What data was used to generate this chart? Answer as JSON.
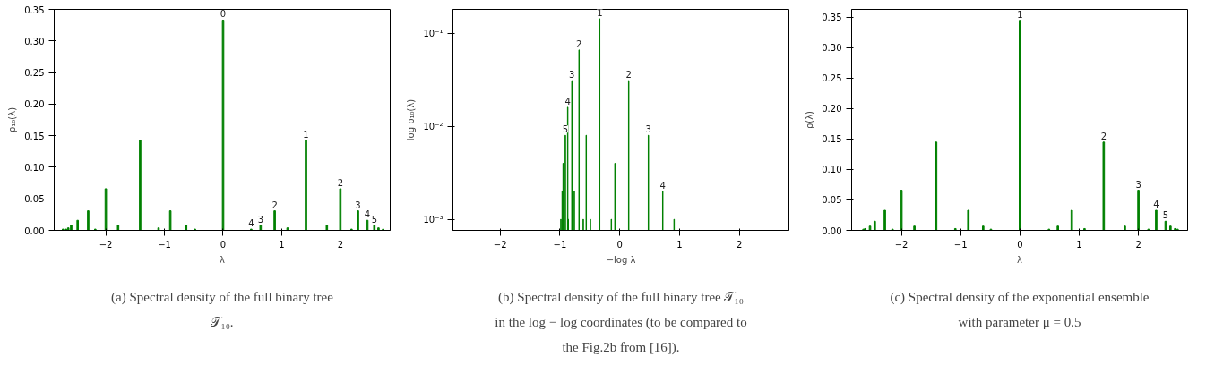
{
  "chart_data": [
    {
      "type": "bar",
      "xlabel": "λ",
      "ylabel": "ρ₁₀(λ)",
      "color": "#008000",
      "grid": false,
      "x": [
        -2.73,
        -2.68,
        -2.64,
        -2.59,
        -2.48,
        -2.3,
        -2.18,
        -2.0,
        -1.79,
        -1.414,
        -1.1,
        -0.9,
        -0.63,
        -0.48,
        0,
        0.48,
        0.64,
        0.88,
        1.1,
        1.414,
        1.77,
        2.0,
        2.19,
        2.3,
        2.46,
        2.58,
        2.65,
        2.73
      ],
      "values": [
        0.002,
        0.002,
        0.004,
        0.008,
        0.016,
        0.031,
        0.002,
        0.066,
        0.008,
        0.143,
        0.004,
        0.031,
        0.008,
        0.002,
        0.333,
        0.002,
        0.008,
        0.031,
        0.004,
        0.143,
        0.008,
        0.066,
        0.002,
        0.031,
        0.016,
        0.008,
        0.004,
        0.002
      ],
      "xlim": [
        -2.88,
        2.85
      ],
      "ylim": [
        0,
        0.35
      ],
      "xticks": [
        -2,
        -1,
        0,
        1,
        2
      ],
      "yticks": [
        {
          "value": 0,
          "label": "0.00"
        },
        {
          "value": 0.05,
          "label": "0.05"
        },
        {
          "value": 0.1,
          "label": "0.10"
        },
        {
          "value": 0.15,
          "label": "0.15"
        },
        {
          "value": 0.2,
          "label": "0.20"
        },
        {
          "value": 0.25,
          "label": "0.25"
        },
        {
          "value": 0.3,
          "label": "0.30"
        },
        {
          "value": 0.35,
          "label": "0.35"
        }
      ],
      "annotations": [
        {
          "text": "0",
          "x": 0,
          "y": 0.333
        },
        {
          "text": "4",
          "x": 0.48,
          "y": 0.002
        },
        {
          "text": "3",
          "x": 0.64,
          "y": 0.008
        },
        {
          "text": "2",
          "x": 0.88,
          "y": 0.031
        },
        {
          "text": "1",
          "x": 1.414,
          "y": 0.143
        },
        {
          "text": "2",
          "x": 2.0,
          "y": 0.066
        },
        {
          "text": "3",
          "x": 2.3,
          "y": 0.031
        },
        {
          "text": "4",
          "x": 2.46,
          "y": 0.016
        },
        {
          "text": "5",
          "x": 2.58,
          "y": 0.008
        },
        "(a) Spectral density of the full binary tree 𝒯₁₀."
      ]
    },
    {
      "type": "bar",
      "xlabel": "−log λ",
      "ylabel": "log ρ₁₀(λ)",
      "color": "#008000",
      "grid": false,
      "log": true,
      "x": [
        -0.984,
        -0.962,
        -0.946,
        -0.91,
        -0.87,
        -0.86,
        -0.8,
        -0.76,
        -0.68,
        -0.61,
        -0.56,
        -0.49,
        -0.335,
        -0.14,
        -0.08,
        0.15,
        0.48,
        0.72,
        0.91
      ],
      "values": [
        0.001,
        0.002,
        0.004,
        0.008,
        0.016,
        0.001,
        0.031,
        0.002,
        0.066,
        0.001,
        0.008,
        0.001,
        0.143,
        0.001,
        0.004,
        0.031,
        0.008,
        0.002,
        0.001
      ],
      "xlim": [
        -2.79,
        2.83
      ],
      "ylim": [
        0.00076,
        0.18
      ],
      "xticks": [
        -2,
        -1,
        0,
        1,
        2
      ],
      "yticks": [
        {
          "value": 0.001,
          "label": "10⁻³"
        },
        {
          "value": 0.01,
          "label": "10⁻²"
        },
        {
          "value": 0.1,
          "label": "10⁻¹"
        }
      ],
      "annotations": [
        {
          "text": "1",
          "x": -0.335,
          "y": 0.143
        },
        {
          "text": "2",
          "x": -0.68,
          "y": 0.066
        },
        {
          "text": "3",
          "x": -0.8,
          "y": 0.031
        },
        {
          "text": "4",
          "x": -0.87,
          "y": 0.016
        },
        {
          "text": "5",
          "x": -0.91,
          "y": 0.008
        },
        {
          "text": "2",
          "x": 0.15,
          "y": 0.031
        },
        {
          "text": "3",
          "x": 0.48,
          "y": 0.008
        },
        {
          "text": "4",
          "x": 0.72,
          "y": 0.002
        },
        "(b) Spectral density of the full binary tree 𝒯₁₀ in the log − log coordinates (to be compared to the Fig.2b from [16])."
      ]
    },
    {
      "type": "bar",
      "xlabel": "λ",
      "ylabel": "ρ(λ)",
      "color": "#008000",
      "grid": false,
      "x": [
        -2.64,
        -2.61,
        -2.53,
        -2.45,
        -2.28,
        -2.15,
        -2.0,
        -1.78,
        -1.414,
        -1.09,
        -0.87,
        -0.62,
        -0.49,
        0,
        0.49,
        0.64,
        0.875,
        1.09,
        1.414,
        1.77,
        2.0,
        2.17,
        2.3,
        2.46,
        2.54,
        2.62,
        2.66
      ],
      "values": [
        0.002,
        0.003,
        0.007,
        0.015,
        0.033,
        0.002,
        0.066,
        0.007,
        0.145,
        0.003,
        0.033,
        0.007,
        0.002,
        0.345,
        0.002,
        0.007,
        0.033,
        0.003,
        0.145,
        0.007,
        0.066,
        0.002,
        0.033,
        0.015,
        0.007,
        0.003,
        0.002
      ],
      "xlim": [
        -2.84,
        2.83
      ],
      "ylim": [
        0,
        0.363
      ],
      "xticks": [
        -2,
        -1,
        0,
        1,
        2
      ],
      "yticks": [
        {
          "value": 0,
          "label": "0.00"
        },
        {
          "value": 0.05,
          "label": "0.05"
        },
        {
          "value": 0.1,
          "label": "0.10"
        },
        {
          "value": 0.15,
          "label": "0.15"
        },
        {
          "value": 0.2,
          "label": "0.20"
        },
        {
          "value": 0.25,
          "label": "0.25"
        },
        {
          "value": 0.3,
          "label": "0.30"
        },
        {
          "value": 0.35,
          "label": "0.35"
        }
      ],
      "annotations": [
        {
          "text": "1",
          "x": 0,
          "y": 0.345
        },
        {
          "text": "2",
          "x": 1.414,
          "y": 0.145
        },
        {
          "text": "3",
          "x": 2.0,
          "y": 0.066
        },
        {
          "text": "4",
          "x": 2.3,
          "y": 0.033
        },
        {
          "text": "5",
          "x": 2.46,
          "y": 0.015
        },
        "(c) Spectral density of the exponential ensemble with parameter μ = 0.5"
      ]
    }
  ]
}
